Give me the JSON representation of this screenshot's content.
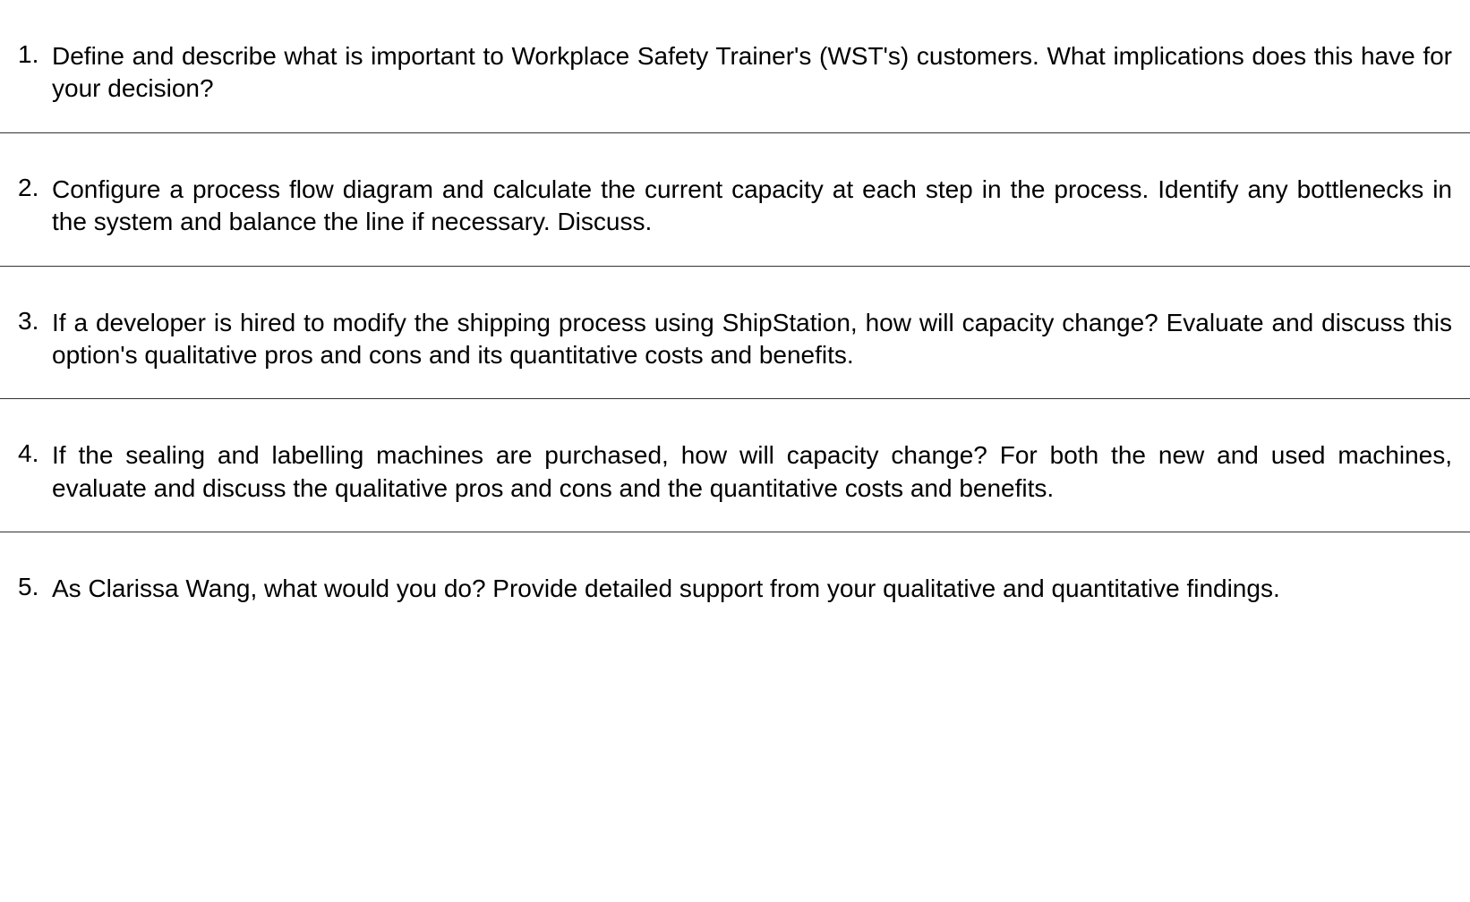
{
  "document": {
    "questions": [
      {
        "number": "1.",
        "text": "Define and describe what is important to Workplace Safety Trainer's (WST's) customers. What implications does this have for your decision?"
      },
      {
        "number": "2.",
        "text": "Configure a process flow diagram and calculate the current capacity at each step in the process. Identify any bottlenecks in the system and balance the line if necessary. Discuss."
      },
      {
        "number": "3.",
        "text": "If a developer is hired to modify the shipping process using ShipStation, how will capacity change? Evaluate and discuss this option's qualitative pros and cons and its quantitative costs and benefits."
      },
      {
        "number": "4.",
        "text": "If the sealing and labelling machines are purchased, how will capacity change? For both the new and used machines, evaluate and discuss the qualitative pros and cons and the quantitative costs and benefits."
      },
      {
        "number": "5.",
        "text": "As Clarissa Wang, what would you do? Provide detailed support from your qualitative and quantitative findings."
      }
    ],
    "styling": {
      "font_family": "Arial",
      "font_size_pt": 21,
      "text_color": "#000000",
      "background_color": "#ffffff",
      "divider_color": "#333333",
      "text_align": "justify",
      "line_height": 1.3
    }
  }
}
